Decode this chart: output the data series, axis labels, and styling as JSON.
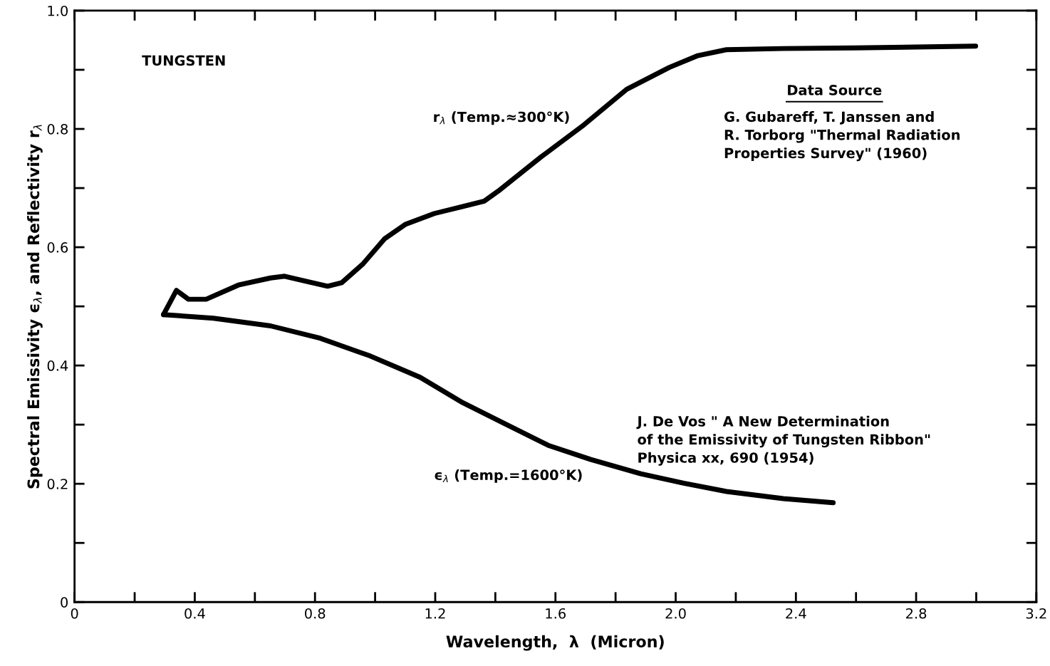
{
  "chart_data": {
    "type": "line",
    "xlabel": "Wavelength,  λ  (Micron)",
    "ylabel": "Spectral Emissivity ϵ$_{λ}$, and Reflectivity r$_{λ}$",
    "series": [
      {
        "name": "r$_{λ}$ (Temp.≈300°K)",
        "color": "#000000",
        "x": [
          0.296,
          0.339,
          0.379,
          0.438,
          0.545,
          0.652,
          0.699,
          0.747,
          0.842,
          0.889,
          0.96,
          1.031,
          1.102,
          1.197,
          1.292,
          1.363,
          1.41,
          1.553,
          1.695,
          1.837,
          1.979,
          2.074,
          2.169,
          2.358,
          2.595,
          2.998
        ],
        "values": [
          0.486,
          0.527,
          0.512,
          0.512,
          0.536,
          0.548,
          0.551,
          0.545,
          0.534,
          0.54,
          0.572,
          0.614,
          0.639,
          0.657,
          0.669,
          0.678,
          0.695,
          0.753,
          0.807,
          0.867,
          0.904,
          0.924,
          0.934,
          0.936,
          0.937,
          0.94
        ]
      },
      {
        "name": "ϵ$_{λ}$ (Temp.=1600°K)",
        "color": "#000000",
        "x": [
          0.296,
          0.462,
          0.652,
          0.818,
          0.984,
          1.15,
          1.292,
          1.434,
          1.576,
          1.718,
          1.884,
          2.027,
          2.169,
          2.358,
          2.524
        ],
        "values": [
          0.486,
          0.48,
          0.467,
          0.446,
          0.416,
          0.38,
          0.337,
          0.301,
          0.265,
          0.241,
          0.217,
          0.201,
          0.187,
          0.175,
          0.168
        ]
      }
    ],
    "xlim": [
      0,
      3.2
    ],
    "ylim": [
      0,
      1
    ],
    "xticks": [
      0,
      {
        "value": 0.2,
        "label": null
      },
      0.4,
      {
        "value": 0.6,
        "label": null
      },
      0.8,
      {
        "value": 1.0,
        "label": null
      },
      1.2,
      {
        "value": 1.4,
        "label": null
      },
      1.6,
      {
        "value": 1.8,
        "label": null
      },
      {
        "value": 2.0,
        "label": "2.0"
      },
      {
        "value": 2.2,
        "label": null
      },
      2.4,
      {
        "value": 2.6,
        "label": null
      },
      2.8,
      {
        "value": 3.0,
        "label": null
      },
      3.2
    ],
    "yticks": [
      0,
      {
        "value": 0.1,
        "label": null
      },
      0.2,
      {
        "value": 0.3,
        "label": null
      },
      0.4,
      {
        "value": 0.5,
        "label": null
      },
      0.6,
      {
        "value": 0.7,
        "label": null
      },
      0.8,
      {
        "value": 0.9,
        "label": null
      },
      {
        "value": 1,
        "label": "1.0"
      }
    ],
    "annotations": [
      "TUNGSTEN",
      "Data Source",
      "G. Gubareff, T. Janssen and\nR. Torborg \"Thermal Radiation\nProperties Survey\" (1960)",
      "J. De Vos \" A New Determination\nof the Emissivity of Tungsten Ribbon\"\nPhysica xx, 690 (1954)"
    ],
    "grid": false,
    "legend": false,
    "line_style": "solid",
    "marker": "none"
  }
}
